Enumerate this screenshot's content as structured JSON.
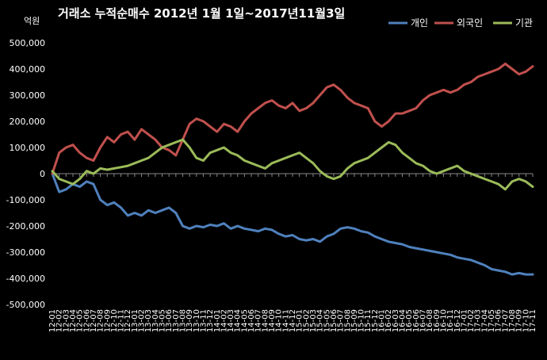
{
  "chart_data": {
    "type": "line",
    "title": "거래소  누적순매수 2012년 1월 1일~2017년11월3일",
    "unit_label": "억원",
    "ylim": [
      -500000,
      500000
    ],
    "y_ticks": [
      500000,
      400000,
      300000,
      200000,
      100000,
      0,
      -100000,
      -200000,
      -300000,
      -400000,
      -500000
    ],
    "y_tick_labels": [
      "500,000",
      "400,000",
      "300,000",
      "200,000",
      "100,000",
      "0",
      "-100,000",
      "-200,000",
      "-300,000",
      "-400,000",
      "-500,000"
    ],
    "x_tick_labels": [
      "12-01",
      "12-02",
      "12-03",
      "12-04",
      "12-05",
      "12-06",
      "12-07",
      "12-08",
      "12-09",
      "12-10",
      "12-11",
      "12-12",
      "13-01",
      "13-02",
      "13-03",
      "13-04",
      "13-05",
      "13-06",
      "13-07",
      "13-08",
      "13-09",
      "13-10",
      "13-11",
      "13-12",
      "14-01",
      "14-02",
      "14-03",
      "14-04",
      "14-05",
      "14-06",
      "14-07",
      "14-08",
      "14-09",
      "14-10",
      "14-11",
      "14-12",
      "15-01",
      "15-02",
      "15-03",
      "15-04",
      "15-05",
      "15-06",
      "15-07",
      "15-08",
      "15-09",
      "15-10",
      "15-11",
      "15-12",
      "16-01",
      "16-02",
      "16-03",
      "16-04",
      "16-05",
      "16-06",
      "16-07",
      "16-08",
      "16-09",
      "16-10",
      "16-11",
      "16-12",
      "17-01",
      "17-02",
      "17-03",
      "17-04",
      "17-05",
      "17-06",
      "17-07",
      "17-08",
      "17-09",
      "17-10",
      "17-11"
    ],
    "grid": false,
    "legend_position": "top-right",
    "series": [
      {
        "name": "개인",
        "color": "#4F81BD",
        "values": [
          0,
          -70000,
          -60000,
          -40000,
          -50000,
          -30000,
          -40000,
          -100000,
          -120000,
          -110000,
          -130000,
          -160000,
          -150000,
          -160000,
          -140000,
          -150000,
          -140000,
          -130000,
          -150000,
          -200000,
          -210000,
          -200000,
          -205000,
          -195000,
          -200000,
          -190000,
          -210000,
          -200000,
          -210000,
          -215000,
          -220000,
          -210000,
          -215000,
          -230000,
          -240000,
          -235000,
          -250000,
          -255000,
          -250000,
          -260000,
          -240000,
          -230000,
          -210000,
          -205000,
          -210000,
          -220000,
          -225000,
          -240000,
          -250000,
          -260000,
          -265000,
          -270000,
          -280000,
          -285000,
          -290000,
          -295000,
          -300000,
          -305000,
          -310000,
          -320000,
          -325000,
          -330000,
          -340000,
          -350000,
          -365000,
          -370000,
          -375000,
          -385000,
          -380000,
          -385000,
          -385000
        ]
      },
      {
        "name": "외국인",
        "color": "#C0504D",
        "values": [
          0,
          80000,
          100000,
          110000,
          80000,
          60000,
          50000,
          100000,
          140000,
          120000,
          150000,
          160000,
          130000,
          170000,
          150000,
          130000,
          100000,
          90000,
          70000,
          130000,
          190000,
          210000,
          200000,
          180000,
          160000,
          190000,
          180000,
          160000,
          200000,
          230000,
          250000,
          270000,
          280000,
          260000,
          250000,
          270000,
          240000,
          250000,
          270000,
          300000,
          330000,
          340000,
          320000,
          290000,
          270000,
          260000,
          250000,
          200000,
          180000,
          200000,
          230000,
          230000,
          240000,
          250000,
          280000,
          300000,
          310000,
          320000,
          310000,
          320000,
          340000,
          350000,
          370000,
          380000,
          390000,
          400000,
          420000,
          400000,
          380000,
          390000,
          410000
        ]
      },
      {
        "name": "기관",
        "color": "#9BBB59",
        "values": [
          10000,
          -20000,
          -30000,
          -40000,
          -20000,
          10000,
          0,
          20000,
          15000,
          20000,
          25000,
          30000,
          40000,
          50000,
          60000,
          80000,
          100000,
          110000,
          120000,
          130000,
          100000,
          60000,
          50000,
          80000,
          90000,
          100000,
          80000,
          70000,
          50000,
          40000,
          30000,
          20000,
          40000,
          50000,
          60000,
          70000,
          80000,
          60000,
          40000,
          10000,
          -10000,
          -20000,
          -10000,
          20000,
          40000,
          50000,
          60000,
          80000,
          100000,
          120000,
          110000,
          80000,
          60000,
          40000,
          30000,
          10000,
          0,
          10000,
          20000,
          30000,
          10000,
          0,
          -10000,
          -20000,
          -30000,
          -40000,
          -60000,
          -30000,
          -20000,
          -30000,
          -50000
        ]
      }
    ]
  }
}
